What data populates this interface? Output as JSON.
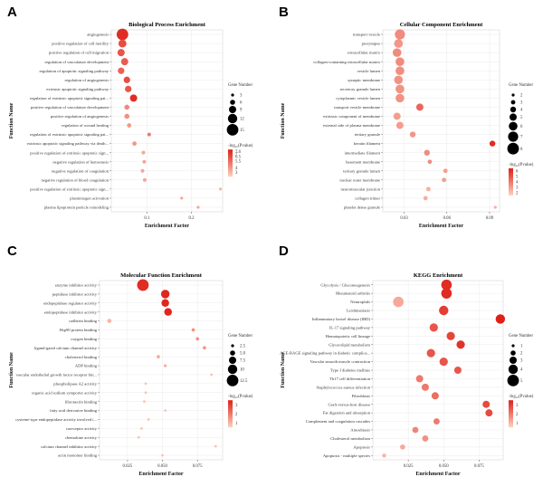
{
  "colors": {
    "low": "#fdd2c0",
    "high": "#df2018",
    "grid": "#e6e6e6",
    "panel_bg": "#ffffff",
    "axis": "#555555"
  },
  "legend_text": {
    "gene_number": "Gene Number",
    "pvalue": "-log₁₀(Pvalue)"
  },
  "chart_data": [
    {
      "panel_label": "A",
      "type": "scatter",
      "title": "Biological Process Enrichment",
      "xlabel": "Enrichment Factor",
      "ylabel": "Function Name",
      "xlim": [
        0.02,
        0.27
      ],
      "xticks": [
        0.1,
        0.2
      ],
      "xtick_labels": [
        "0.1",
        "0.2"
      ],
      "size_legend": {
        "values": [
          3,
          6,
          9,
          12,
          15
        ],
        "labels": [
          "3",
          "6",
          "9",
          "12",
          "15"
        ],
        "range": [
          3,
          15
        ]
      },
      "color_legend": {
        "values": [
          7.6,
          7,
          6.5,
          5.5,
          4,
          3
        ],
        "labels": [
          "7.6",
          "7",
          "6.5",
          "5.5",
          "4",
          "3"
        ],
        "range": [
          2,
          8
        ]
      },
      "points": [
        {
          "label": "angiogenesis",
          "x": 0.045,
          "size": 15,
          "color": 7.6
        },
        {
          "label": "positive regulation of cell motility",
          "x": 0.045,
          "size": 10,
          "color": 6.5
        },
        {
          "label": "positive regulation of cell migration",
          "x": 0.042,
          "size": 9,
          "color": 6.2
        },
        {
          "label": "regulation of vasculature development",
          "x": 0.05,
          "size": 9,
          "color": 6.0
        },
        {
          "label": "regulation of apoptotic signaling pathway",
          "x": 0.042,
          "size": 8,
          "color": 5.8
        },
        {
          "label": "regulation of angiogenesis",
          "x": 0.055,
          "size": 8,
          "color": 6.5
        },
        {
          "label": "extrinsic apoptotic signaling pathway",
          "x": 0.058,
          "size": 8,
          "color": 6.2
        },
        {
          "label": "regulation of extrinsic apoptotic signaling pat...",
          "x": 0.07,
          "size": 9,
          "color": 7.6
        },
        {
          "label": "positive regulation of vasculature development",
          "x": 0.055,
          "size": 6,
          "color": 4.5
        },
        {
          "label": "positive regulation of angiogenesis",
          "x": 0.055,
          "size": 6,
          "color": 4.2
        },
        {
          "label": "regulation of wound healing",
          "x": 0.06,
          "size": 5,
          "color": 4.0
        },
        {
          "label": "regulation of extrinsic apoptotic signaling pat...",
          "x": 0.105,
          "size": 4,
          "color": 5.0
        },
        {
          "label": "extrinsic apoptotic signaling pathway via death...",
          "x": 0.072,
          "size": 5,
          "color": 4.0
        },
        {
          "label": "positive regulation of extrinsic apoptotic sign...",
          "x": 0.092,
          "size": 4,
          "color": 3.5
        },
        {
          "label": "negative regulation of hemostasis",
          "x": 0.094,
          "size": 4,
          "color": 3.5
        },
        {
          "label": "negative regulation of coagulation",
          "x": 0.09,
          "size": 4,
          "color": 3.5
        },
        {
          "label": "negative regulation of blood coagulation",
          "x": 0.095,
          "size": 4,
          "color": 3.5
        },
        {
          "label": "positive regulation of extrinsic apoptotic sign...",
          "x": 0.265,
          "size": 3,
          "color": 3.0
        },
        {
          "label": "plasminogen activation",
          "x": 0.178,
          "size": 3,
          "color": 3.5
        },
        {
          "label": "plasma lipoprotein particle remodeling",
          "x": 0.215,
          "size": 3,
          "color": 3.5
        }
      ]
    },
    {
      "panel_label": "B",
      "type": "scatter",
      "title": "Cellular Component Enrichment",
      "xlabel": "Enrichment Factor",
      "ylabel": "Function Name",
      "xlim": [
        0.015,
        0.097
      ],
      "xticks": [
        0.03,
        0.06,
        0.09
      ],
      "xtick_labels": [
        "0.03",
        "0.06",
        "0.09"
      ],
      "size_legend": {
        "values": [
          2,
          3,
          4,
          5,
          6,
          7,
          8
        ],
        "labels": [
          "2",
          "3",
          "4",
          "5",
          "6",
          "7",
          "8"
        ],
        "range": [
          2,
          8
        ]
      },
      "color_legend": {
        "values": [
          6,
          5,
          4,
          3,
          2
        ],
        "labels": [
          "6",
          "5",
          "4",
          "3",
          "2"
        ],
        "range": [
          1.5,
          6.5
        ]
      },
      "points": [
        {
          "label": "transport vesicle",
          "x": 0.027,
          "size": 7,
          "color": 3.5
        },
        {
          "label": "presynapse",
          "x": 0.026,
          "size": 6,
          "color": 3.2
        },
        {
          "label": "extracellular matrix",
          "x": 0.025,
          "size": 6,
          "color": 3.5
        },
        {
          "label": "collagen-containing extracellular matrix",
          "x": 0.027,
          "size": 6,
          "color": 3.5
        },
        {
          "label": "vesicle lumen",
          "x": 0.027,
          "size": 6,
          "color": 3.4
        },
        {
          "label": "synaptic membrane",
          "x": 0.026,
          "size": 6,
          "color": 3.3
        },
        {
          "label": "secretory granule lumen",
          "x": 0.027,
          "size": 6,
          "color": 3.3
        },
        {
          "label": "cytoplasmic vesicle lumen",
          "x": 0.027,
          "size": 6,
          "color": 3.3
        },
        {
          "label": "transport vesicle membrane",
          "x": 0.041,
          "size": 5,
          "color": 4.5
        },
        {
          "label": "extrinsic component of membrane",
          "x": 0.025,
          "size": 5,
          "color": 3.0
        },
        {
          "label": "external side of plasma membrane",
          "x": 0.027,
          "size": 5,
          "color": 3.0
        },
        {
          "label": "tertiary granule",
          "x": 0.036,
          "size": 4,
          "color": 3.2
        },
        {
          "label": "keratin filament",
          "x": 0.092,
          "size": 4,
          "color": 6.2
        },
        {
          "label": "intermediate filament",
          "x": 0.046,
          "size": 4,
          "color": 3.5
        },
        {
          "label": "basement membrane",
          "x": 0.048,
          "size": 3,
          "color": 3.5
        },
        {
          "label": "tertiary granule lumen",
          "x": 0.059,
          "size": 3,
          "color": 3.0
        },
        {
          "label": "nuclear outer membrane",
          "x": 0.058,
          "size": 3,
          "color": 3.0
        },
        {
          "label": "neuromuscular junction",
          "x": 0.047,
          "size": 3,
          "color": 2.5
        },
        {
          "label": "collagen trimer",
          "x": 0.045,
          "size": 3,
          "color": 2.5
        },
        {
          "label": "platelet dense granule",
          "x": 0.094,
          "size": 2,
          "color": 2.5
        }
      ]
    },
    {
      "panel_label": "C",
      "type": "scatter",
      "title": "Molecular Function Enrichment",
      "xlabel": "Enrichment Factor",
      "ylabel": "Function Name",
      "xlim": [
        0.005,
        0.093
      ],
      "xticks": [
        0.025,
        0.05,
        0.075
      ],
      "xtick_labels": [
        "0.025",
        "0.050",
        "0.075"
      ],
      "size_legend": {
        "values": [
          2.5,
          5,
          7.5,
          10,
          12.5
        ],
        "labels": [
          "2.5",
          "5.0",
          "7.5",
          "10",
          "12.5"
        ],
        "range": [
          2.5,
          12.5
        ]
      },
      "color_legend": {
        "values": [
          3,
          2,
          1
        ],
        "labels": [
          "3",
          "2",
          "1"
        ],
        "range": [
          0.5,
          3.5
        ]
      },
      "points": [
        {
          "label": "enzyme inhibitor activity",
          "x": 0.036,
          "size": 12.5,
          "color": 3.3
        },
        {
          "label": "peptidase inhibitor activity",
          "x": 0.052,
          "size": 9,
          "color": 3.4
        },
        {
          "label": "endopeptidase regulator activity",
          "x": 0.052,
          "size": 8,
          "color": 3.4
        },
        {
          "label": "endopeptidase inhibitor activity",
          "x": 0.054,
          "size": 8,
          "color": 3.4
        },
        {
          "label": "cadherin binding",
          "x": 0.012,
          "size": 4,
          "color": 1.0
        },
        {
          "label": "Hsp90 protein binding",
          "x": 0.072,
          "size": 3,
          "color": 1.6
        },
        {
          "label": "oxygen binding",
          "x": 0.075,
          "size": 3,
          "color": 1.6
        },
        {
          "label": "ligand-gated calcium channel activity",
          "x": 0.08,
          "size": 3,
          "color": 1.5
        },
        {
          "label": "cholesterol binding",
          "x": 0.047,
          "size": 3,
          "color": 1.2
        },
        {
          "label": "ADP binding",
          "x": 0.052,
          "size": 2.5,
          "color": 1.2
        },
        {
          "label": "vascular endothelial growth factor receptor bin...",
          "x": 0.085,
          "size": 2,
          "color": 0.8
        },
        {
          "label": "phospholipase A2 activity",
          "x": 0.038,
          "size": 2,
          "color": 0.8
        },
        {
          "label": "organic acid sodium symporter activity",
          "x": 0.038,
          "size": 2,
          "color": 0.8
        },
        {
          "label": "fibronectin binding",
          "x": 0.037,
          "size": 2,
          "color": 0.8
        },
        {
          "label": "fatty acid derivative binding",
          "x": 0.052,
          "size": 2,
          "color": 0.8
        },
        {
          "label": "cysteine-type endopeptidase activity involved i...",
          "x": 0.04,
          "size": 2,
          "color": 0.8
        },
        {
          "label": "coreceptor activity",
          "x": 0.035,
          "size": 2,
          "color": 0.8
        },
        {
          "label": "chemokine activity",
          "x": 0.033,
          "size": 2,
          "color": 0.8
        },
        {
          "label": "calcium channel inhibitor activity",
          "x": 0.088,
          "size": 2,
          "color": 0.8
        },
        {
          "label": "actin monomer binding",
          "x": 0.05,
          "size": 2,
          "color": 0.8
        }
      ]
    },
    {
      "panel_label": "D",
      "type": "scatter",
      "title": "KEGG Enrichment",
      "xlabel": "Enrichment Factor",
      "ylabel": "Function Name",
      "xlim": [
        0.0,
        0.092
      ],
      "xticks": [
        0.025,
        0.05,
        0.075
      ],
      "xtick_labels": [
        "0.025",
        "0.050",
        "0.075"
      ],
      "size_legend": {
        "values": [
          1,
          2,
          3,
          4,
          5
        ],
        "labels": [
          "1",
          "2",
          "3",
          "4",
          "5"
        ],
        "range": [
          1,
          5
        ]
      },
      "color_legend": {
        "values": [
          3,
          2,
          1
        ],
        "labels": [
          "3",
          "2",
          "1"
        ],
        "range": [
          0.5,
          3.5
        ]
      },
      "points": [
        {
          "label": "Glycolysis / Gluconeogenesis",
          "x": 0.052,
          "size": 4.5,
          "color": 3.3
        },
        {
          "label": "Rheumatoid arthritis",
          "x": 0.052,
          "size": 4.5,
          "color": 3.3
        },
        {
          "label": "Neutrophils",
          "x": 0.018,
          "size": 4.5,
          "color": 1.2
        },
        {
          "label": "Leishmaniasis",
          "x": 0.05,
          "size": 4,
          "color": 3.0
        },
        {
          "label": "Inflammatory bowel disease (IBD)",
          "x": 0.09,
          "size": 4,
          "color": 3.5
        },
        {
          "label": "IL-17 signaling pathway",
          "x": 0.043,
          "size": 3.5,
          "color": 2.6
        },
        {
          "label": "Hematopoietic cell lineage",
          "x": 0.055,
          "size": 3.5,
          "color": 2.9
        },
        {
          "label": "Glycerolipid metabolism",
          "x": 0.062,
          "size": 3.5,
          "color": 3.2
        },
        {
          "label": "AGE-RAGE signaling pathway in diabetic complica...",
          "x": 0.041,
          "size": 3.5,
          "color": 2.6
        },
        {
          "label": "Vascular smooth muscle contraction",
          "x": 0.05,
          "size": 3.5,
          "color": 2.6
        },
        {
          "label": "Type I diabetes mellitus",
          "x": 0.06,
          "size": 3,
          "color": 2.6
        },
        {
          "label": "Th17 cell differentiation",
          "x": 0.033,
          "size": 3,
          "color": 2.0
        },
        {
          "label": "Staphylococcus aureus infection",
          "x": 0.037,
          "size": 3,
          "color": 2.0
        },
        {
          "label": "Fibroblasts",
          "x": 0.044,
          "size": 3,
          "color": 2.2
        },
        {
          "label": "Graft-versus-host disease",
          "x": 0.08,
          "size": 3,
          "color": 2.8
        },
        {
          "label": "Fat digestion and absorption",
          "x": 0.082,
          "size": 3,
          "color": 2.8
        },
        {
          "label": "Complement and coagulation cascades",
          "x": 0.045,
          "size": 2.5,
          "color": 2.0
        },
        {
          "label": "Amoebiasis",
          "x": 0.03,
          "size": 2.5,
          "color": 1.8
        },
        {
          "label": "Cholesterol metabolism",
          "x": 0.037,
          "size": 2.5,
          "color": 1.6
        },
        {
          "label": "Apoptosis",
          "x": 0.021,
          "size": 2,
          "color": 1.2
        },
        {
          "label": "Apoptosis - multiple species",
          "x": 0.008,
          "size": 1.5,
          "color": 1.0
        }
      ]
    }
  ]
}
